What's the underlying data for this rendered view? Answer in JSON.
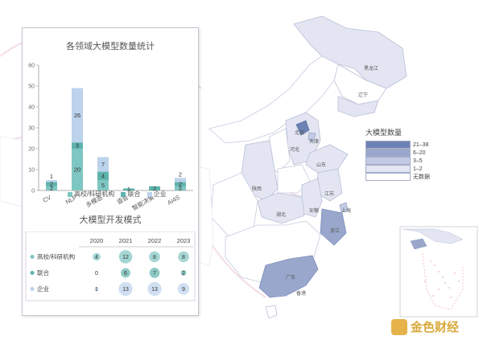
{
  "chart_title": "各领域大模型数量统计",
  "chart_data": [
    {
      "type": "bar",
      "stacked": true,
      "title": "各领域大模型数量统计",
      "categories": [
        "CV",
        "NLP",
        "多模态",
        "语音",
        "智能决策",
        "AI4S"
      ],
      "ylim": [
        0,
        60
      ],
      "yticks": [
        0,
        10,
        20,
        30,
        40,
        50,
        60
      ],
      "grid": false,
      "legend_position": "bottom",
      "series": [
        {
          "name": "高校/科研机构",
          "color": "#7ec6c1",
          "values": [
            2,
            20,
            5,
            0,
            0,
            2
          ]
        },
        {
          "name": "联合",
          "color": "#5fb3ad",
          "values": [
            2,
            3,
            4,
            1,
            2,
            2
          ]
        },
        {
          "name": "企业",
          "color": "#bcd3ec",
          "values": [
            1,
            26,
            7,
            0,
            0,
            2
          ]
        }
      ],
      "labels": [
        [
          "2",
          "20",
          "5",
          "",
          "",
          "2"
        ],
        [
          "2",
          "3",
          "4",
          "1",
          "2",
          "2"
        ],
        [
          "1",
          "26",
          "7",
          "",
          "",
          "2"
        ]
      ]
    },
    {
      "type": "table",
      "title": "大模型开发模式",
      "columns": [
        "2020",
        "2021",
        "2022",
        "2023"
      ],
      "rows": [
        {
          "name": "高校/科研机构",
          "color": "#7ec6c1",
          "values": [
            "4",
            "12",
            "8",
            "8"
          ]
        },
        {
          "name": "联合",
          "color": "#5fb3ad",
          "values": [
            "0",
            "6",
            "7",
            "2"
          ]
        },
        {
          "name": "企业",
          "color": "#bcd3ec",
          "values": [
            "1",
            "13",
            "13",
            "9"
          ]
        }
      ]
    }
  ],
  "map_legend": {
    "title": "大模型数量",
    "items": [
      {
        "label": "21–38",
        "color": "#6d82b4"
      },
      {
        "label": "6–20",
        "color": "#9aa7cc"
      },
      {
        "label": "3–5",
        "color": "#c3cae3"
      },
      {
        "label": "1–2",
        "color": "#e3e6f2"
      },
      {
        "label": "无数据",
        "color": "#ffffff"
      }
    ]
  },
  "provinces": {
    "heilongjiang": "黑龙江",
    "liaoning": "辽宁",
    "beijing": "北京",
    "tianjin": "天津",
    "hebei": "河北",
    "shandong": "山东",
    "shaanxi": "陕西",
    "jiangsu": "江苏",
    "anhui": "安徽",
    "shanghai": "上海",
    "hubei": "湖北",
    "zhejiang": "浙江",
    "guangdong": "广东",
    "hongkong": "香港"
  },
  "watermark": "金色财经"
}
